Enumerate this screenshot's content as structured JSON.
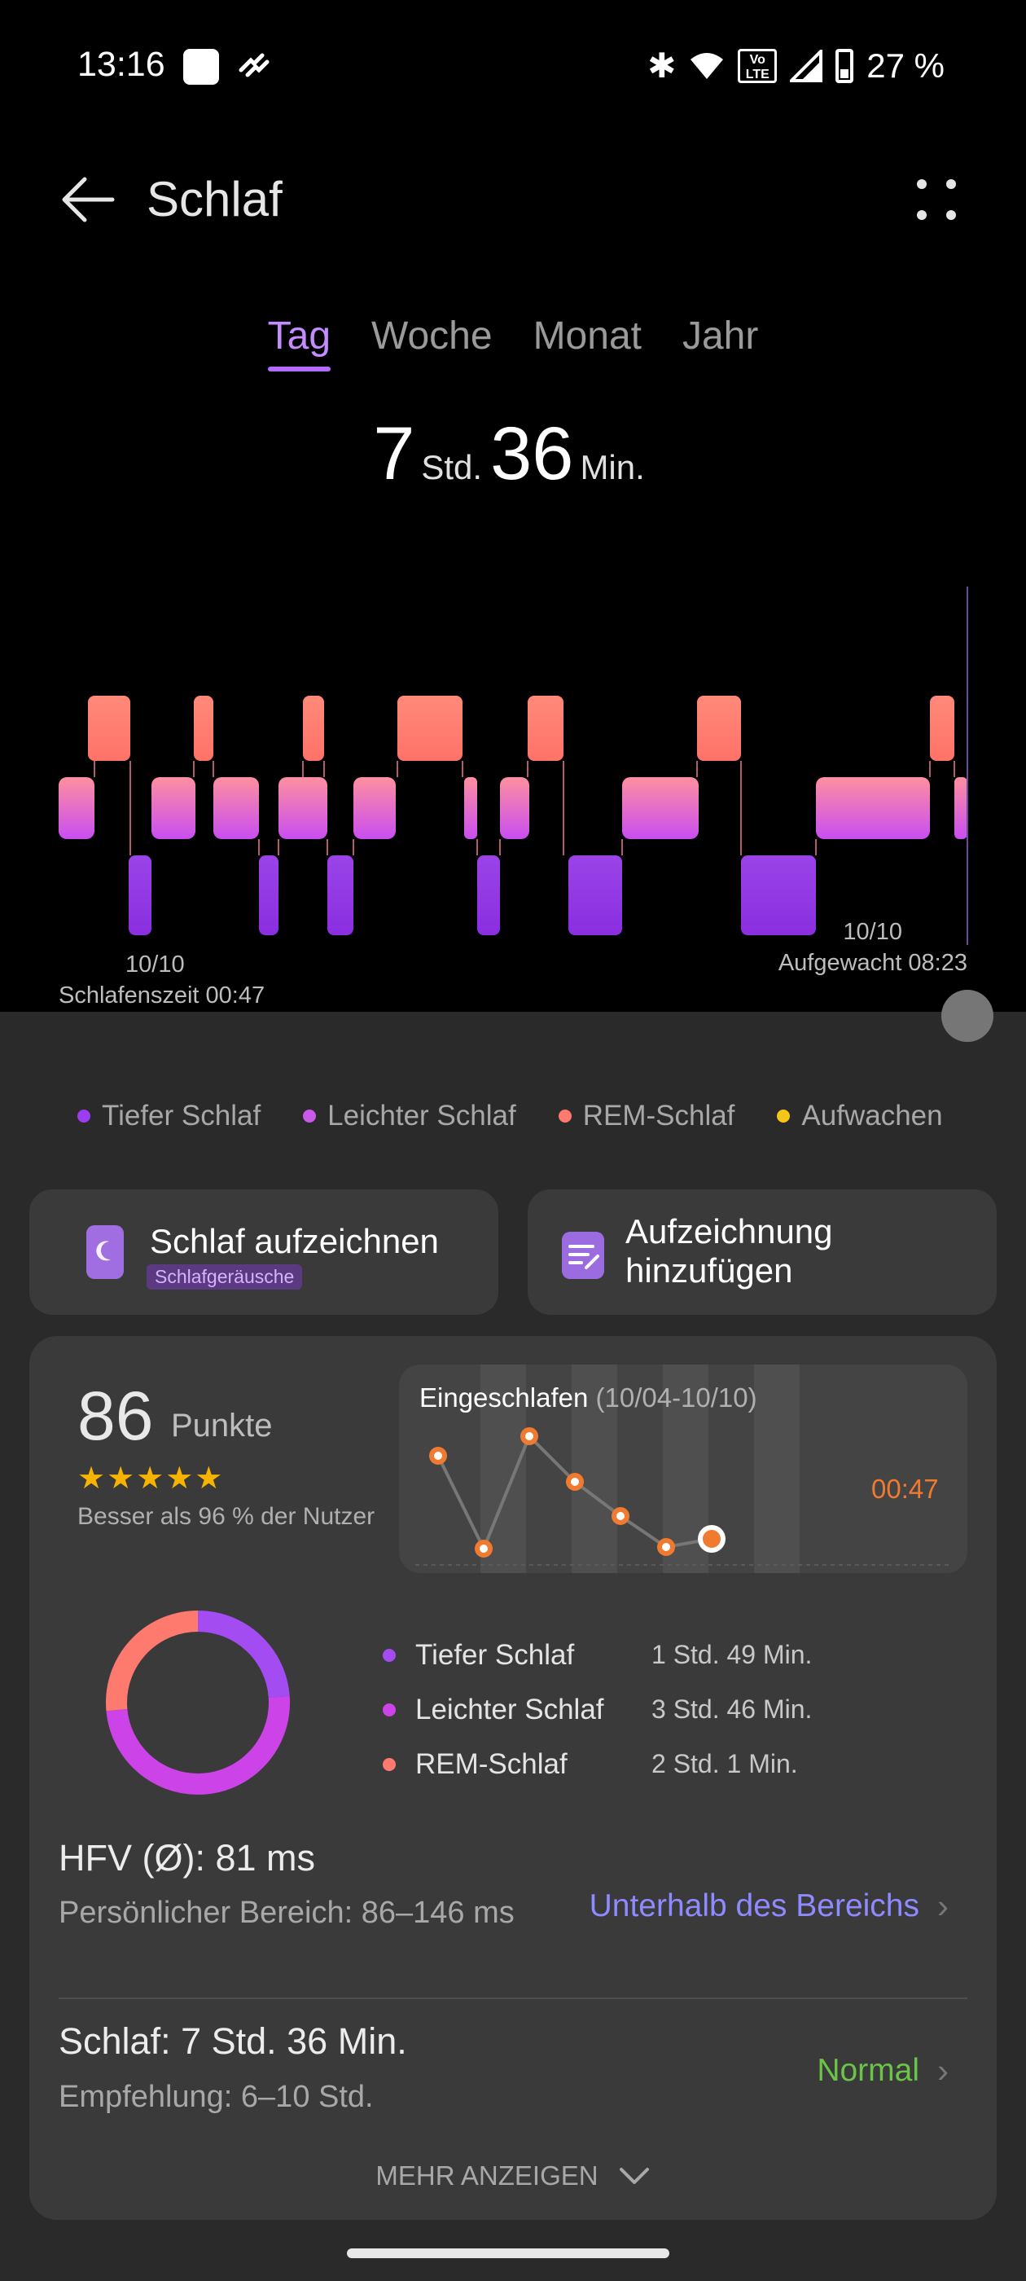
{
  "status_bar": {
    "time": "13:16",
    "volte_label": "Vo LTE",
    "battery_text": "27 %"
  },
  "header": {
    "title": "Schlaf"
  },
  "tabs": [
    {
      "label": "Tag",
      "active": true
    },
    {
      "label": "Woche",
      "active": false
    },
    {
      "label": "Monat",
      "active": false
    },
    {
      "label": "Jahr",
      "active": false
    }
  ],
  "summary": {
    "hours": "7",
    "hours_unit": "Std.",
    "minutes": "36",
    "minutes_unit": "Min."
  },
  "chart": {
    "start_date": "10/10",
    "start_label": "Schlafenszeit 00:47",
    "end_date": "10/10",
    "end_label": "Aufgewacht 08:23"
  },
  "colors": {
    "deep": "#9b3df0",
    "light": "#cc5ae8",
    "rem": "#ff7a6e",
    "awake": "#f5c518",
    "accent": "#b26cff"
  },
  "legend": [
    {
      "label": "Tiefer Schlaf",
      "color": "#9b3df0"
    },
    {
      "label": "Leichter Schlaf",
      "color": "#cc5ae8"
    },
    {
      "label": "REM-Schlaf",
      "color": "#ff7a6e"
    },
    {
      "label": "Aufwachen",
      "color": "#f5c518"
    }
  ],
  "actions": {
    "record": {
      "title": "Schlaf aufzeichnen",
      "badge": "Schlafgeräusche"
    },
    "add": {
      "title": "Aufzeichnung hinzufügen"
    }
  },
  "score": {
    "value": "86",
    "unit": "Punkte",
    "stars": "★★★★★",
    "rating": 4.5,
    "comparison": "Besser als 96 % der Nutzer"
  },
  "fall_asleep": {
    "title": "Eingeschlafen",
    "range": "(10/04-10/10)",
    "latest_time": "00:47"
  },
  "stages": [
    {
      "name": "Tiefer Schlaf",
      "value": "1 Std. 49 Min.",
      "color": "#a24cf2"
    },
    {
      "name": "Leichter Schlaf",
      "value": "3 Std. 46 Min.",
      "color": "#cc44e8"
    },
    {
      "name": "REM-Schlaf",
      "value": "2 Std. 1 Min.",
      "color": "#ff7a6e"
    }
  ],
  "hfv": {
    "title": "HFV (Ø): 81 ms",
    "subtitle": "Persönlicher Bereich: 86–146 ms",
    "status": "Unterhalb des Bereichs"
  },
  "sleep_duration": {
    "title": "Schlaf: 7 Std. 36 Min.",
    "subtitle": "Empfehlung: 6–10 Std.",
    "status": "Normal"
  },
  "show_more": "MEHR ANZEIGEN"
}
